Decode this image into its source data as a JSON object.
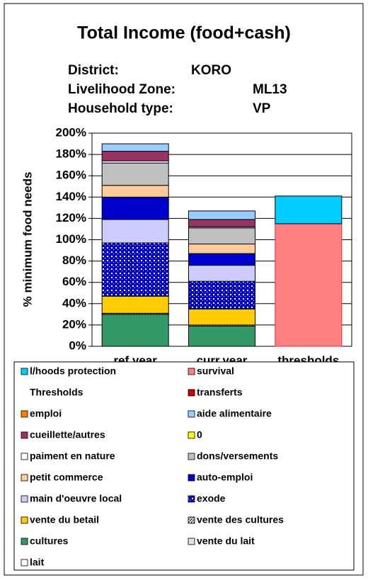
{
  "chart_data": {
    "type": "stacked_bar",
    "title": "Total Income (food+cash)",
    "info": [
      {
        "label": "District:",
        "value": "KORO"
      },
      {
        "label": "Livelihood Zone:",
        "value": "ML13"
      },
      {
        "label": "Household type:",
        "value": "VP"
      }
    ],
    "y_label": "% minimum food needs",
    "categories": [
      "ref.year",
      "curr.year",
      "thresholds"
    ],
    "ylim": [
      0,
      200
    ],
    "yticks": [
      {
        "value": 0,
        "label": "0%"
      },
      {
        "value": 20,
        "label": "20%"
      },
      {
        "value": 40,
        "label": "40%"
      },
      {
        "value": 60,
        "label": "60%"
      },
      {
        "value": 80,
        "label": "80%"
      },
      {
        "value": 100,
        "label": "100%"
      },
      {
        "value": 120,
        "label": "120%"
      },
      {
        "value": 140,
        "label": "140%"
      },
      {
        "value": 160,
        "label": "160%"
      },
      {
        "value": 180,
        "label": "180%"
      },
      {
        "value": 200,
        "label": "200%"
      }
    ],
    "grid": true,
    "series": [
      {
        "name": "l/hoods protection",
        "color": "#00ccff",
        "values": [
          0,
          0,
          26
        ]
      },
      {
        "name": "survival",
        "color": "#ff8080",
        "values": [
          0,
          0,
          115
        ]
      },
      {
        "name": "Thresholds",
        "color": null,
        "values": [
          0,
          0,
          0
        ]
      },
      {
        "name": "transferts",
        "color": "#cc0000",
        "values": [
          0,
          0,
          0
        ]
      },
      {
        "name": "emploi",
        "color": "#ff8000",
        "values": [
          0,
          0,
          0
        ]
      },
      {
        "name": "aide alimentaire",
        "color": "#99ccff",
        "values": [
          7,
          8,
          0
        ]
      },
      {
        "name": "cueillette/autres",
        "color": "#993366",
        "values": [
          9,
          7,
          0
        ]
      },
      {
        "name": "0",
        "color": "#ffff00",
        "values": [
          0,
          0,
          0
        ]
      },
      {
        "name": "paiment en nature",
        "color": "#ffffff",
        "values": [
          2,
          1,
          0
        ]
      },
      {
        "name": "dons/versements",
        "color": "#c0c0c0",
        "values": [
          21,
          15,
          0
        ]
      },
      {
        "name": "petit commerce",
        "color": "#ffcc99",
        "values": [
          11,
          9,
          0
        ]
      },
      {
        "name": "auto-emploi",
        "color": "#0000cc",
        "values": [
          21,
          11,
          0
        ]
      },
      {
        "name": "main d'oeuvre local",
        "color": "#ccccff",
        "values": [
          22,
          15,
          0
        ]
      },
      {
        "name": "exode",
        "color": "#0000cc",
        "pattern": "grid",
        "values": [
          50,
          26,
          0
        ]
      },
      {
        "name": "vente du betail",
        "color": "#ffcc00",
        "values": [
          16,
          15,
          0
        ]
      },
      {
        "name": "vente des cultures",
        "color": "#333333",
        "pattern": "hatch",
        "values": [
          1,
          1,
          0
        ]
      },
      {
        "name": "cultures",
        "color": "#339966",
        "values": [
          30,
          19,
          0
        ]
      },
      {
        "name": "vente du lait",
        "color": "#e0e0e0",
        "values": [
          0,
          0,
          0
        ]
      },
      {
        "name": "lait",
        "color": "#ffffff",
        "values": [
          0,
          0,
          0
        ]
      }
    ]
  }
}
